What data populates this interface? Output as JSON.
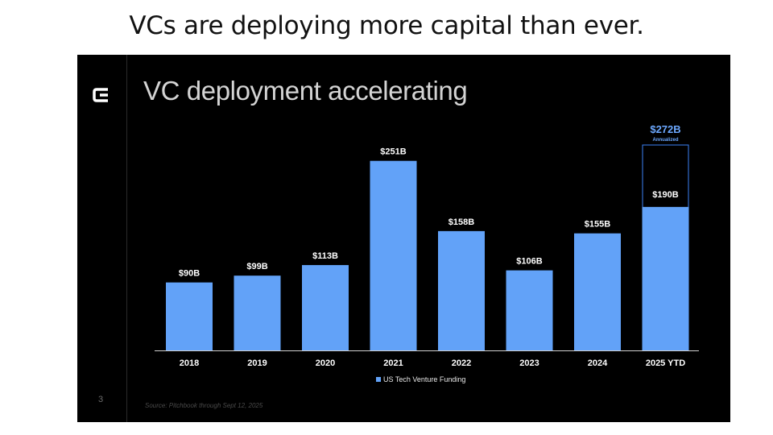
{
  "headline": "VCs are deploying more capital than ever.",
  "slide": {
    "title": "VC deployment accelerating",
    "page_number": "3",
    "source": "Source: Pitchbook through Sept 12, 2025",
    "logo_icon": "bracket-c-logo-icon"
  },
  "colors": {
    "bar": "#62A2F8",
    "annualized_outline": "#3B82F6",
    "annualized_text": "#6CA8FF",
    "background": "#000000"
  },
  "chart_data": {
    "type": "bar",
    "title": "VC deployment accelerating",
    "xlabel": "",
    "ylabel": "",
    "categories": [
      "2018",
      "2019",
      "2020",
      "2021",
      "2022",
      "2023",
      "2024",
      "2025 YTD"
    ],
    "series": [
      {
        "name": "US Tech Venture Funding",
        "values": [
          90,
          99,
          113,
          251,
          158,
          106,
          155,
          190
        ],
        "labels": [
          "$90B",
          "$99B",
          "$113B",
          "$251B",
          "$158B",
          "$106B",
          "$155B",
          "$190B"
        ]
      }
    ],
    "annualized": {
      "category": "2025 YTD",
      "value": 272,
      "label": "$272B",
      "note": "Annualized"
    },
    "ylim": [
      0,
      272
    ],
    "grid": false,
    "legend": "bottom-center"
  }
}
